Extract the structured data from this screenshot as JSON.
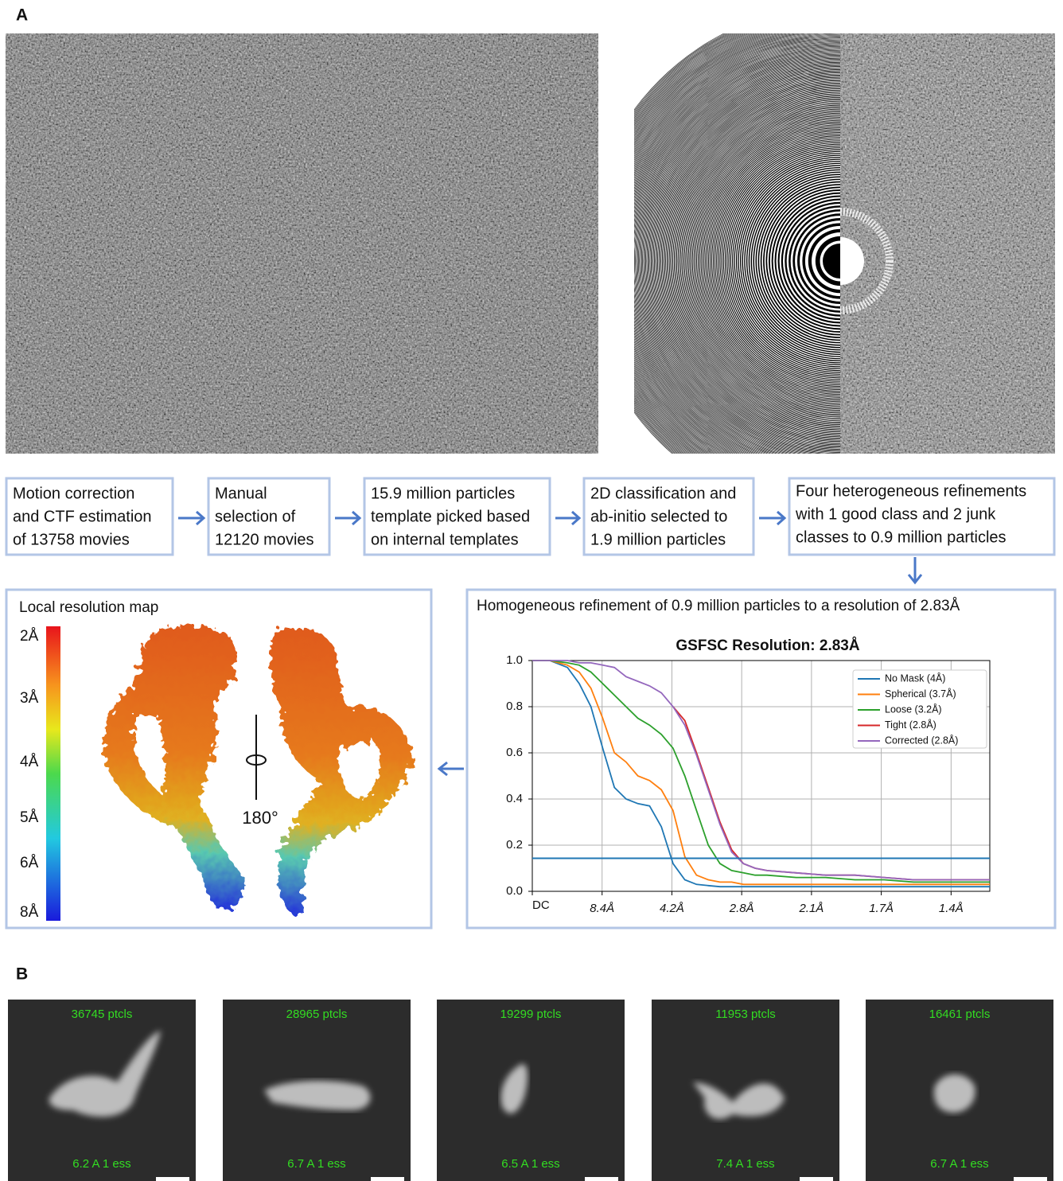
{
  "panel_a_label": "A",
  "panel_b_label": "B",
  "flow": [
    {
      "lines": [
        "Motion correction",
        "and CTF estimation",
        "of 13758 movies"
      ]
    },
    {
      "lines": [
        "Manual",
        "selection of",
        "12120 movies"
      ]
    },
    {
      "lines": [
        "15.9 million particles",
        "template picked based",
        "on internal templates"
      ]
    },
    {
      "lines": [
        "2D classification and",
        "ab-initio selected to",
        "1.9 million particles"
      ]
    },
    {
      "lines": [
        "Four heterogeneous refinements",
        "with 1 good class and 2 junk",
        "classes to 0.9 million particles"
      ]
    }
  ],
  "local_resolution": {
    "title": "Local resolution map",
    "colorbar_labels": [
      "2Å",
      "3Å",
      "4Å",
      "5Å",
      "6Å",
      "8Å"
    ],
    "rotation": "180°"
  },
  "refinement_title": "Homogeneous refinement of 0.9 million particles to a resolution of 2.83Å",
  "chart_data": {
    "type": "line",
    "title": "GSFSC Resolution: 2.83Å",
    "x": [
      0,
      0.03,
      0.06,
      0.08,
      0.1,
      0.12,
      0.14,
      0.16,
      0.18,
      0.2,
      0.22,
      0.24,
      0.26,
      0.28,
      0.3,
      0.32,
      0.34,
      0.36,
      0.38,
      0.4,
      0.45,
      0.5,
      0.55,
      0.6,
      0.65,
      0.7,
      0.78
    ],
    "series": [
      {
        "name": "No Mask (4Å)",
        "color": "#1f77b4",
        "values": [
          1,
          1,
          0.97,
          0.9,
          0.8,
          0.62,
          0.45,
          0.4,
          0.38,
          0.37,
          0.28,
          0.12,
          0.05,
          0.03,
          0.025,
          0.02,
          0.02,
          0.02,
          0.02,
          0.02,
          0.02,
          0.02,
          0.02,
          0.02,
          0.02,
          0.02,
          0.02
        ]
      },
      {
        "name": "Spherical (3.7Å)",
        "color": "#ff7f0e",
        "values": [
          1,
          1,
          0.98,
          0.95,
          0.88,
          0.75,
          0.6,
          0.56,
          0.5,
          0.48,
          0.44,
          0.35,
          0.15,
          0.07,
          0.05,
          0.04,
          0.04,
          0.03,
          0.03,
          0.03,
          0.03,
          0.03,
          0.03,
          0.03,
          0.03,
          0.03,
          0.03
        ]
      },
      {
        "name": "Loose (3.2Å)",
        "color": "#2ca02c",
        "values": [
          1,
          1,
          0.99,
          0.98,
          0.95,
          0.9,
          0.85,
          0.8,
          0.75,
          0.72,
          0.68,
          0.62,
          0.5,
          0.35,
          0.2,
          0.12,
          0.09,
          0.08,
          0.07,
          0.07,
          0.06,
          0.06,
          0.05,
          0.05,
          0.04,
          0.04,
          0.04
        ]
      },
      {
        "name": "Tight (2.8Å)",
        "color": "#d62728",
        "values": [
          null,
          null,
          null,
          null,
          null,
          null,
          null,
          null,
          null,
          null,
          null,
          0.8,
          0.74,
          0.6,
          0.45,
          0.3,
          0.18,
          0.12,
          0.1,
          0.09,
          0.08,
          0.07,
          0.07,
          0.06,
          0.05,
          0.05,
          0.05
        ]
      },
      {
        "name": "Corrected (2.8Å)",
        "color": "#9467bd",
        "values": [
          1,
          1,
          1,
          0.99,
          0.99,
          0.98,
          0.97,
          0.93,
          0.91,
          0.89,
          0.86,
          0.8,
          0.72,
          0.59,
          0.44,
          0.29,
          0.17,
          0.12,
          0.1,
          0.09,
          0.08,
          0.07,
          0.07,
          0.06,
          0.05,
          0.05,
          0.05
        ]
      }
    ],
    "threshold": {
      "value": 0.143,
      "color": "#1f77b4"
    },
    "xlim": [
      0,
      0.78
    ],
    "xticks": [
      {
        "value": 0,
        "label": "DC"
      },
      {
        "value": 0.119,
        "label": "8.4Å"
      },
      {
        "value": 0.238,
        "label": "4.2Å"
      },
      {
        "value": 0.357,
        "label": "2.8Å"
      },
      {
        "value": 0.476,
        "label": "2.1Å"
      },
      {
        "value": 0.595,
        "label": "1.7Å"
      },
      {
        "value": 0.714,
        "label": "1.4Å"
      }
    ],
    "ylim": [
      0,
      1
    ],
    "yticks": [
      {
        "value": 0,
        "label": "0.0"
      },
      0.2,
      0.4,
      0.6,
      0.8,
      {
        "value": 1,
        "label": "1.0"
      }
    ],
    "grid": true,
    "legend": "upper right"
  },
  "class_averages": [
    {
      "count": "36745 ptcls",
      "resolution": "6.2 A 1 ess"
    },
    {
      "count": "28965 ptcls",
      "resolution": "6.7 A 1 ess"
    },
    {
      "count": "19299 ptcls",
      "resolution": "6.5 A 1 ess"
    },
    {
      "count": "11953 ptcls",
      "resolution": "7.4 A 1 ess"
    },
    {
      "count": "16461 ptcls",
      "resolution": "6.7 A 1 ess"
    }
  ]
}
